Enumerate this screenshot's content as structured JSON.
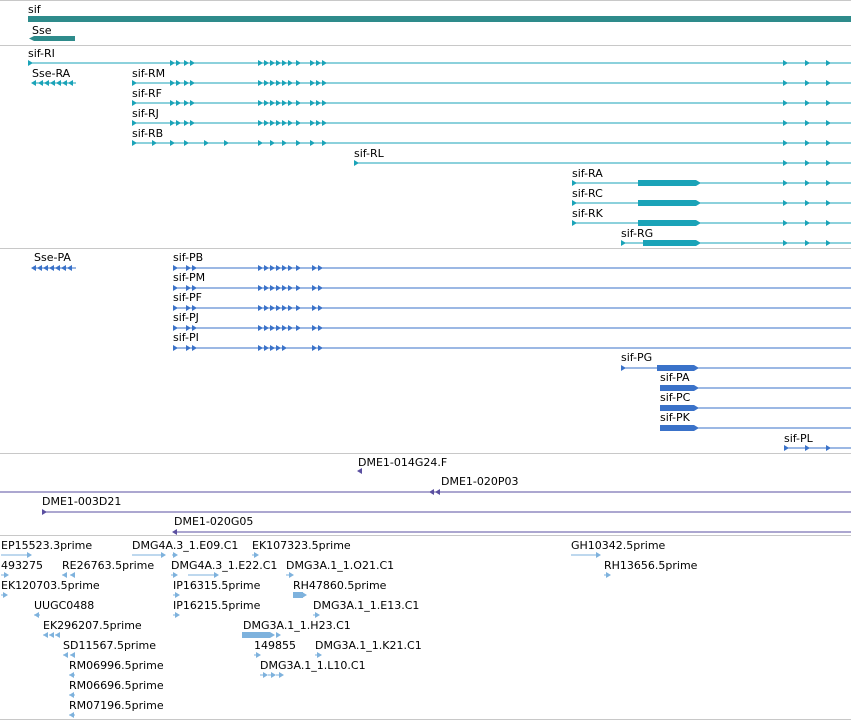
{
  "colors": {
    "gene": "#2e8b8b",
    "transcript": "#1aa3b8",
    "protein": "#3a72c9",
    "clone": "#5a4fa0",
    "est": "#7eb2dd",
    "separator": "#c8c8c8"
  },
  "tracks": {
    "genes": {
      "items": [
        "sif",
        "Sse"
      ]
    },
    "transcripts": {
      "items": [
        "sif-RI",
        "Sse-RA",
        "sif-RM",
        "sif-RF",
        "sif-RJ",
        "sif-RB",
        "sif-RL",
        "sif-RA",
        "sif-RC",
        "sif-RK",
        "sif-RG"
      ]
    },
    "proteins": {
      "items": [
        "Sse-PA",
        "sif-PB",
        "sif-PM",
        "sif-PF",
        "sif-PJ",
        "sif-PI",
        "sif-PG",
        "sif-PA",
        "sif-PC",
        "sif-PK",
        "sif-PL"
      ]
    },
    "clones": {
      "items": [
        "DME1-014G24.F",
        "DME1-020P03",
        "DME1-003D21",
        "DME1-020G05"
      ]
    },
    "ests": {
      "items": [
        "EP15523.3prime",
        "DMG4A.3_1.E09.C1",
        "EK107323.5prime",
        "GH10342.5prime",
        "493275",
        "RE26763.5prime",
        "DMG4A.3_1.E22.C1",
        "DMG3A.1_1.O21.C1",
        "RH13656.5prime",
        "EK120703.5prime",
        "IP16315.5prime",
        "RH47860.5prime",
        "IP16215.5prime",
        "UUGC0488",
        "DMG3A.1_1.E13.C1",
        "EK296207.5prime",
        "DMG3A.1_1.H23.C1",
        "SD11567.5prime",
        "149855",
        "DMG3A.1_1.K21.C1",
        "RM06996.5prime",
        "DMG3A.1_1.L10.C1",
        "RM06696.5prime",
        "RM07196.5prime"
      ]
    }
  }
}
